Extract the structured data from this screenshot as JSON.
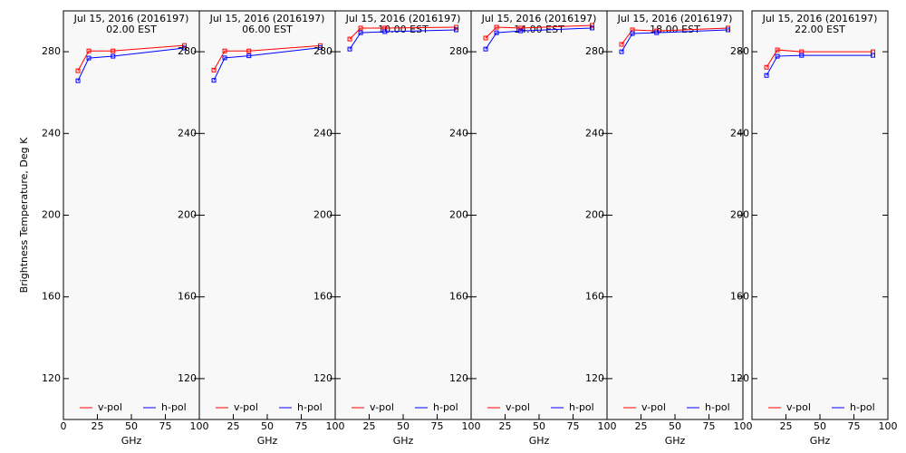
{
  "chart_data": [
    {
      "type": "line",
      "title": "Jul 15, 2016 (2016197)",
      "subtitle": "02.00 EST",
      "xlabel": "GHz",
      "ylabel": "Brightness Temperature, Deg K",
      "x": [
        10.7,
        18.7,
        36.5,
        89
      ],
      "xlim": [
        0,
        100
      ],
      "xticks": [
        0,
        25,
        50,
        75,
        100
      ],
      "ylim": [
        100,
        300
      ],
      "yticks": [
        120,
        160,
        200,
        240,
        280
      ],
      "series": [
        {
          "name": "v-pol",
          "color": "#ff0000",
          "values": [
            270.7,
            280.4,
            280.4,
            283.1
          ]
        },
        {
          "name": "h-pol",
          "color": "#0000ff",
          "values": [
            265.8,
            276.9,
            277.8,
            281.8
          ]
        }
      ]
    },
    {
      "type": "line",
      "title": "Jul 15, 2016 (2016197)",
      "subtitle": "06.00 EST",
      "xlabel": "GHz",
      "x": [
        10.7,
        18.7,
        36.5,
        89
      ],
      "xlim": [
        0,
        100
      ],
      "xticks": [
        25,
        50,
        75,
        100
      ],
      "ylim": [
        100,
        300
      ],
      "yticks": [
        120,
        160,
        200,
        240,
        280
      ],
      "series": [
        {
          "name": "v-pol",
          "color": "#ff0000",
          "values": [
            271,
            280.4,
            280.4,
            283
          ]
        },
        {
          "name": "h-pol",
          "color": "#0000ff",
          "values": [
            266,
            277,
            278,
            282
          ]
        }
      ]
    },
    {
      "type": "line",
      "title": "Jul 15, 2016 (2016197)",
      "subtitle": "10.00 EST",
      "xlabel": "GHz",
      "x": [
        10.7,
        18.7,
        36.5,
        89
      ],
      "xlim": [
        0,
        100
      ],
      "xticks": [
        25,
        50,
        75,
        100
      ],
      "ylim": [
        100,
        300
      ],
      "yticks": [
        120,
        160,
        200,
        240,
        280
      ],
      "series": [
        {
          "name": "v-pol",
          "color": "#ff0000",
          "values": [
            286.2,
            291.6,
            291.6,
            292
          ]
        },
        {
          "name": "h-pol",
          "color": "#0000ff",
          "values": [
            281.3,
            289.3,
            289.8,
            290.7
          ]
        }
      ]
    },
    {
      "type": "line",
      "title": "Jul 15, 2016 (2016197)",
      "subtitle": "14.00 EST",
      "xlabel": "GHz",
      "x": [
        10.7,
        18.7,
        36.5,
        89
      ],
      "xlim": [
        0,
        100
      ],
      "xticks": [
        25,
        50,
        75,
        100
      ],
      "ylim": [
        100,
        300
      ],
      "yticks": [
        120,
        160,
        200,
        240,
        280
      ],
      "series": [
        {
          "name": "v-pol",
          "color": "#ff0000",
          "values": [
            286.7,
            292,
            291.6,
            292.9
          ]
        },
        {
          "name": "h-pol",
          "color": "#0000ff",
          "values": [
            281.3,
            289.3,
            290.2,
            291.6
          ]
        }
      ]
    },
    {
      "type": "line",
      "title": "Jul 15, 2016 (2016197)",
      "subtitle": "18.00 EST",
      "xlabel": "GHz",
      "x": [
        10.7,
        18.7,
        36.5,
        89
      ],
      "xlim": [
        0,
        100
      ],
      "xticks": [
        25,
        50,
        75,
        100
      ],
      "ylim": [
        100,
        300
      ],
      "yticks": [
        120,
        160,
        200,
        240,
        280
      ],
      "series": [
        {
          "name": "v-pol",
          "color": "#ff0000",
          "values": [
            283.6,
            290.7,
            290.2,
            291.6
          ]
        },
        {
          "name": "h-pol",
          "color": "#0000ff",
          "values": [
            280,
            288.9,
            289.3,
            290.7
          ]
        }
      ]
    },
    {
      "type": "line",
      "title": "Jul 15, 2016 (2016197)",
      "subtitle": "22.00 EST",
      "xlabel": "GHz",
      "x": [
        10.7,
        18.7,
        36.5,
        89
      ],
      "xlim": [
        0,
        100
      ],
      "xticks": [
        25,
        50,
        75,
        100
      ],
      "ylim": [
        100,
        300
      ],
      "yticks": [
        120,
        160,
        200,
        240,
        280
      ],
      "series": [
        {
          "name": "v-pol",
          "color": "#ff0000",
          "values": [
            272.4,
            280.9,
            280,
            280
          ]
        },
        {
          "name": "h-pol",
          "color": "#0000ff",
          "values": [
            268.4,
            277.8,
            278.2,
            278.2
          ]
        }
      ]
    }
  ]
}
